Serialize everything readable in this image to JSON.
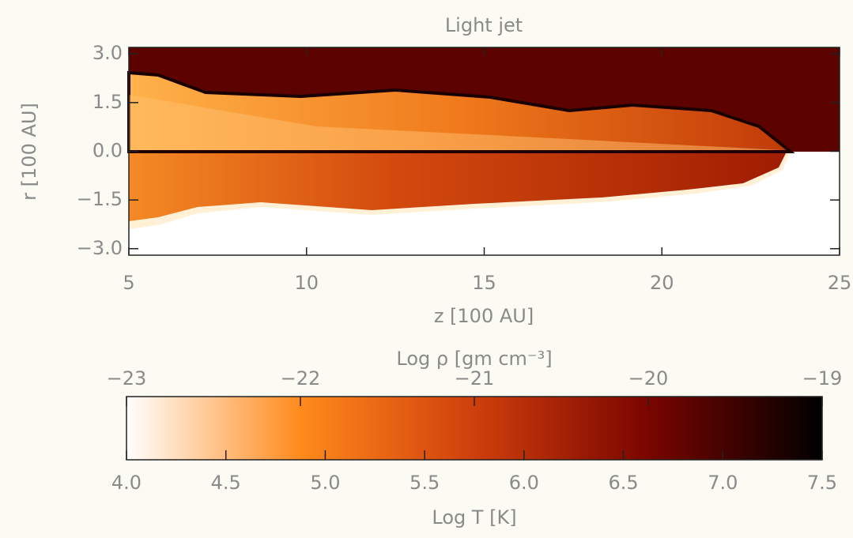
{
  "chart_data": {
    "type": "heatmap",
    "title": "Light jet",
    "xlabel": "z [100 AU]",
    "ylabel": "r [100 AU]",
    "xlim": [
      5,
      25
    ],
    "xticks": [
      5,
      10,
      15,
      20,
      25
    ],
    "ylim": [
      -3.2,
      3.2
    ],
    "yticks": [
      {
        "value": 3,
        "label": "3.0"
      },
      {
        "value": 1.5,
        "label": "1.5"
      },
      {
        "value": 0,
        "label": "0.0"
      },
      {
        "value": -1.5,
        "label": "−1.5"
      },
      {
        "value": -3,
        "label": "−3.0"
      }
    ],
    "colorbar": {
      "colors": [
        "#ffffff",
        "#ff8a1c",
        "#cf3f0c",
        "#7a0500",
        "#000000"
      ],
      "top_label": "Log ρ [gm cm⁻³]",
      "top_lim": [
        -23,
        -19
      ],
      "top_ticks": [
        {
          "value": -23,
          "label": "−23"
        },
        {
          "value": -22,
          "label": "−22"
        },
        {
          "value": -21,
          "label": "−21"
        },
        {
          "value": -20,
          "label": "−20"
        },
        {
          "value": -19,
          "label": "−19"
        }
      ],
      "bottom_label": "Log T [K]",
      "bottom_lim": [
        4,
        7.5
      ],
      "bottom_ticks": [
        {
          "value": 4,
          "label": "4.0"
        },
        {
          "value": 4.5,
          "label": "4.5"
        },
        {
          "value": 5,
          "label": "5.0"
        },
        {
          "value": 5.5,
          "label": "5.5"
        },
        {
          "value": 6,
          "label": "6.0"
        },
        {
          "value": 6.5,
          "label": "6.5"
        },
        {
          "value": 7,
          "label": "7.0"
        },
        {
          "value": 7.5,
          "label": "7.5"
        }
      ]
    }
  }
}
